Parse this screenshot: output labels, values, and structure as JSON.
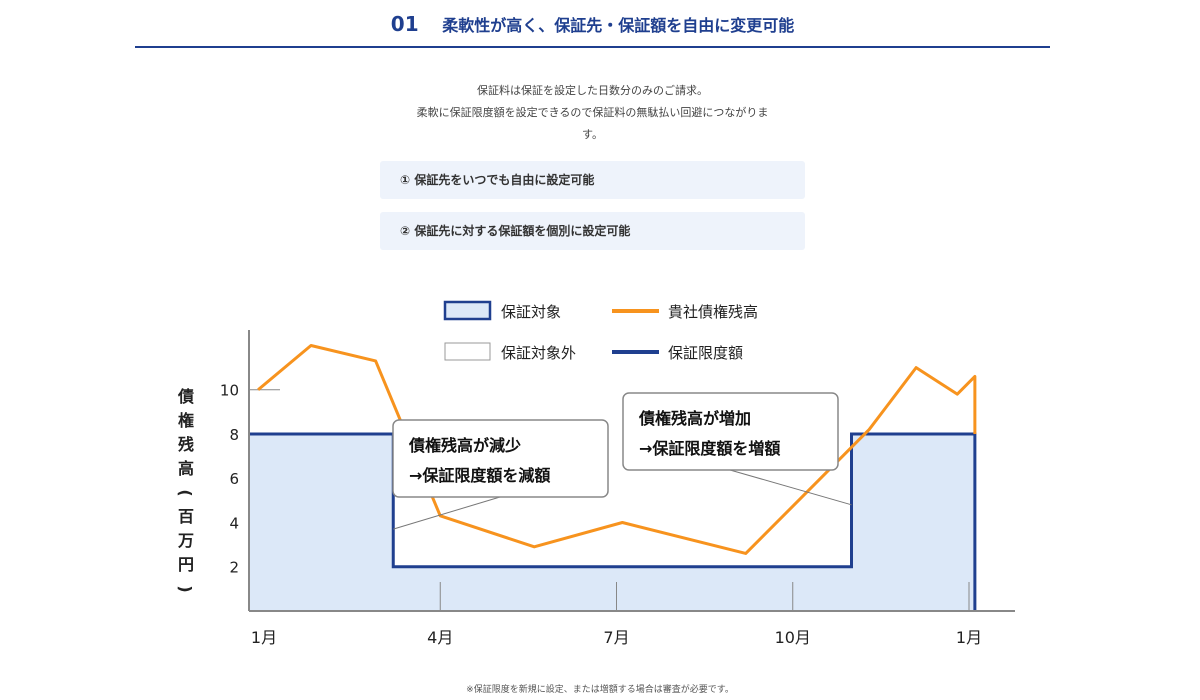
{
  "header": {
    "number": "01",
    "title": "柔軟性が高く、保証先・保証額を自由に変更可能"
  },
  "intro": {
    "line1": "保証料は保証を設定した日数分のみのご請求。",
    "line2": "柔軟に保証限度額を設定できるので保証料の無駄払い回避につながりま",
    "line3": "す。"
  },
  "features": [
    "① 保証先をいつでも自由に設定可能",
    "② 保証先に対する保証額を個別に設定可能"
  ],
  "chart_data": {
    "type": "line",
    "ylabel": "債権残高（百万円）",
    "y_ticks": [
      2,
      4,
      6,
      8,
      10
    ],
    "ylim": [
      0,
      12.7
    ],
    "xlim": [
      0,
      12.3
    ],
    "x_tick_labels": [
      {
        "x": 0,
        "label": "1月"
      },
      {
        "x": 3,
        "label": "4月"
      },
      {
        "x": 6,
        "label": "7月"
      },
      {
        "x": 9,
        "label": "10月"
      },
      {
        "x": 12,
        "label": "1月"
      }
    ],
    "legend": [
      {
        "label": "保証対象",
        "symbol": "box-filled",
        "color": "#1f3f8f",
        "fill": "#dce8f8"
      },
      {
        "label": "貴社債権残高",
        "symbol": "line",
        "color": "#f7931e"
      },
      {
        "label": "保証対象外",
        "symbol": "box-empty",
        "color": "#999999"
      },
      {
        "label": "保証限度額",
        "symbol": "line",
        "color": "#1f3f8f"
      }
    ],
    "series": [
      {
        "name": "貴社債権残高",
        "color": "#f7931e",
        "points": [
          [
            -0.1,
            10.0
          ],
          [
            0.8,
            12.0
          ],
          [
            1.9,
            11.3
          ],
          [
            3.0,
            4.3
          ],
          [
            4.6,
            2.9
          ],
          [
            6.1,
            4.0
          ],
          [
            8.2,
            2.6
          ],
          [
            10.3,
            8.2
          ],
          [
            11.1,
            11.0
          ],
          [
            11.8,
            9.8
          ],
          [
            12.1,
            10.6
          ],
          [
            12.1,
            8.0
          ]
        ]
      },
      {
        "name": "保証限度額",
        "color": "#1f3f8f",
        "fill": "#dce8f8",
        "points": [
          [
            -0.1,
            8.0
          ],
          [
            2.2,
            8.0
          ],
          [
            2.2,
            2.0
          ],
          [
            10.0,
            2.0
          ],
          [
            10.0,
            8.0
          ],
          [
            12.1,
            8.0
          ],
          [
            12.1,
            0.0
          ]
        ]
      }
    ],
    "annotations": [
      {
        "line1": "債権残高が減少",
        "line2": "→保証限度額を減額",
        "target": [
          2.2,
          3.7
        ]
      },
      {
        "line1": "債権残高が増加",
        "line2": "→保証限度額を増額",
        "target": [
          10.0,
          4.8
        ]
      }
    ]
  },
  "footnote": "※保証限度を新規に設定、または増額する場合は審査が必要です。"
}
